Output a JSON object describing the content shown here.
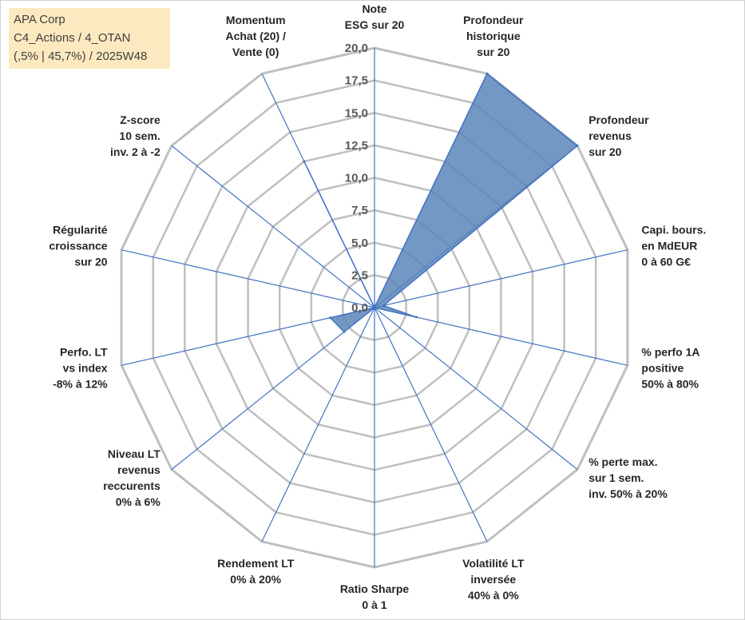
{
  "header": {
    "line1": "APA Corp",
    "line2": "C4_Actions / 4_OTAN",
    "line3": "(,5% | 45,7%) / 2025W48"
  },
  "colors": {
    "fill": "#5b86b8",
    "stroke": "#4472c4",
    "grid": "#bfbfbf",
    "axis": "#4472c4",
    "box_bg": "#fde9bf"
  },
  "chart_data": {
    "type": "radar",
    "title": "APA Corp",
    "rmin": 0,
    "rmax": 20,
    "ticks": [
      "0,0",
      "2,5",
      "5,0",
      "7,5",
      "10,0",
      "12,5",
      "15,0",
      "17,5",
      "20,0"
    ],
    "tick_values": [
      0,
      2.5,
      5,
      7.5,
      10,
      12.5,
      15,
      17.5,
      20
    ],
    "categories": [
      [
        "Note",
        "ESG sur 20"
      ],
      [
        "Profondeur",
        "historique",
        "sur 20"
      ],
      [
        "Profondeur",
        "revenus",
        "sur 20"
      ],
      [
        "Capi. bours.",
        "en MdEUR",
        "0 à 60 G€"
      ],
      [
        "% perfo 1A",
        "positive",
        "50% à 80%"
      ],
      [
        "% perte max.",
        "sur 1 sem.",
        "inv. 50% à 20%"
      ],
      [
        "Volatilité LT",
        "inversée",
        "40% à 0%"
      ],
      [
        "Ratio Sharpe",
        "0 à 1"
      ],
      [
        "Rendement LT",
        "0% à 20%"
      ],
      [
        "Niveau LT",
        "revenus",
        "reccurents",
        "0% à 6%"
      ],
      [
        "Perfo. LT",
        "vs index",
        "-8% à 12%"
      ],
      [
        "Régularité",
        "croissance",
        "sur 20"
      ],
      [
        "Z-score",
        "10 sem.",
        "inv. 2 à -2"
      ],
      [
        "Momentum",
        "Achat (20) /",
        "Vente (0)"
      ]
    ],
    "series": [
      {
        "name": "APA Corp",
        "values": [
          0,
          20,
          20,
          0.7,
          3.3,
          0,
          0,
          0,
          0,
          3.0,
          3.5,
          0,
          0,
          12.5
        ]
      }
    ]
  }
}
